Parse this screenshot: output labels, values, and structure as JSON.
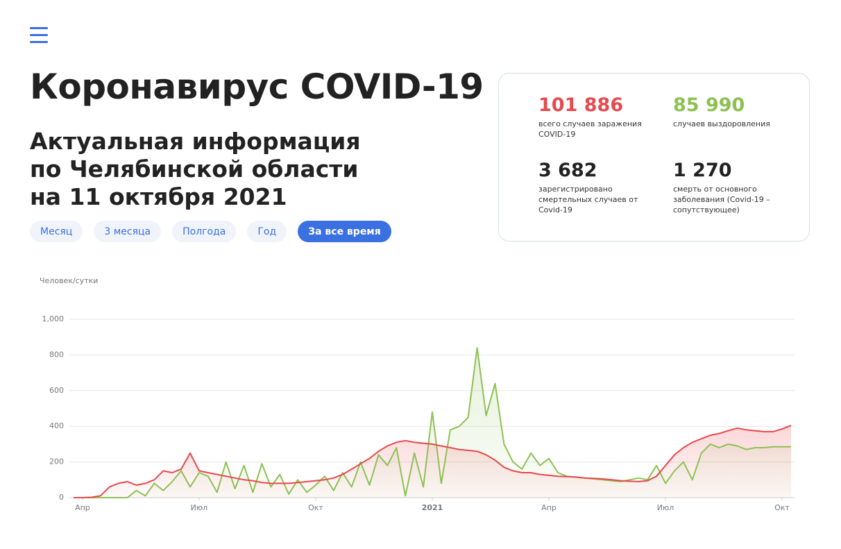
{
  "header": {
    "title": "Коронавирус COVID-19",
    "subtitle": [
      "Актуальная информация",
      "по Челябинской области",
      "на 11 октября 2021"
    ]
  },
  "periods": [
    "Месяц",
    "3 месяца",
    "Полгода",
    "Год",
    "За все время"
  ],
  "stats": [
    {
      "value": "101 886",
      "label": "всего случаев заражения COVID-19"
    },
    {
      "value": "85 990",
      "label": "случаев выздоровления"
    },
    {
      "value": "3 682",
      "label": "зарегистрировано смертельных случаев от Covid-19"
    },
    {
      "value": "1 270",
      "label": "смерть от основного заболевания (Covid-19 – сопутствующее)"
    }
  ],
  "chart_data": {
    "type": "area",
    "y_label": "Человек/сутки",
    "categories": [
      null,
      "Апр",
      null,
      null,
      null,
      null,
      null,
      null,
      null,
      null,
      null,
      null,
      null,
      null,
      "Июл",
      null,
      null,
      null,
      null,
      null,
      null,
      null,
      null,
      null,
      null,
      null,
      null,
      "Окт",
      null,
      null,
      null,
      null,
      null,
      null,
      null,
      null,
      null,
      null,
      null,
      null,
      "2021",
      null,
      null,
      null,
      null,
      null,
      null,
      null,
      null,
      null,
      null,
      null,
      null,
      "Апр",
      null,
      null,
      null,
      null,
      null,
      null,
      null,
      null,
      null,
      null,
      null,
      null,
      "Июл",
      null,
      null,
      null,
      null,
      null,
      null,
      null,
      null,
      null,
      null,
      null,
      null,
      "Окт",
      null
    ],
    "series": [
      {
        "color": "#8cc152",
        "values": [
          0,
          0,
          0,
          0,
          0,
          0,
          0,
          40,
          10,
          80,
          40,
          90,
          150,
          60,
          140,
          120,
          30,
          200,
          50,
          180,
          30,
          190,
          60,
          130,
          20,
          100,
          30,
          70,
          120,
          40,
          140,
          60,
          200,
          70,
          240,
          180,
          280,
          10,
          250,
          60,
          480,
          80,
          380,
          400,
          450,
          840,
          460,
          640,
          300,
          200,
          160,
          250,
          180,
          220,
          140,
          120,
          115,
          110,
          105,
          100,
          95,
          90,
          100,
          110,
          100,
          180,
          80,
          150,
          200,
          100,
          250,
          300,
          280,
          300,
          290,
          270,
          280,
          280,
          285,
          285,
          285
        ]
      },
      {
        "color": "#e8474c",
        "values": [
          0,
          0,
          2,
          10,
          60,
          80,
          90,
          70,
          80,
          100,
          150,
          140,
          160,
          250,
          150,
          140,
          130,
          120,
          110,
          100,
          95,
          85,
          80,
          80,
          80,
          85,
          90,
          95,
          100,
          110,
          130,
          160,
          190,
          220,
          260,
          290,
          310,
          320,
          310,
          305,
          300,
          290,
          280,
          270,
          265,
          260,
          240,
          210,
          170,
          150,
          140,
          140,
          130,
          125,
          120,
          118,
          115,
          110,
          108,
          105,
          100,
          95,
          92,
          90,
          95,
          120,
          180,
          240,
          280,
          310,
          330,
          350,
          360,
          375,
          390,
          380,
          375,
          370,
          370,
          385,
          405
        ]
      }
    ],
    "ylim": [
      0,
      1000
    ],
    "yticks": [
      0,
      200,
      400,
      600,
      800,
      {
        "value": 1000,
        "label": "1,000"
      }
    ],
    "grid": true
  }
}
